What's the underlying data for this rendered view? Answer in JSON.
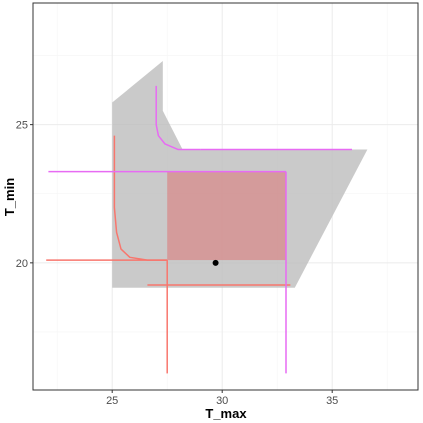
{
  "chart_data": {
    "type": "scatter",
    "title": "",
    "xlabel": "T_max",
    "ylabel": "T_min",
    "xlim": [
      21.4,
      38.9
    ],
    "ylim": [
      15.4,
      29.4
    ],
    "x_ticks": [
      25,
      30,
      35
    ],
    "y_ticks": [
      20,
      25
    ],
    "x_tick_labels": [
      "25",
      "30",
      "35"
    ],
    "y_tick_labels": [
      "20",
      "25"
    ],
    "grid": true,
    "colors": {
      "panel_border": "#333333",
      "grid_major": "#ebebeb",
      "grid_minor": "#f5f5f5",
      "region_fill": "#bdbdbd",
      "overlap_fill": "#d78b8b",
      "red": "#f8766d",
      "magenta": "#e76bf3",
      "point": "#000000"
    },
    "gray_region": [
      [
        25.0,
        25.8
      ],
      [
        27.3,
        27.3
      ],
      [
        27.3,
        25.5
      ],
      [
        28.2,
        24.1
      ],
      [
        36.6,
        24.1
      ],
      [
        33.3,
        19.1
      ],
      [
        25.0,
        19.1
      ]
    ],
    "overlap_rectangle": {
      "x": [
        27.5,
        32.9
      ],
      "y": [
        20.1,
        23.3
      ]
    },
    "red_curve": [
      [
        25.1,
        24.6
      ],
      [
        25.1,
        22.0
      ],
      [
        25.2,
        21.1
      ],
      [
        25.4,
        20.5
      ],
      [
        25.8,
        20.2
      ],
      [
        26.6,
        20.1
      ],
      [
        27.5,
        20.1
      ]
    ],
    "red_h_line": {
      "x": [
        22.0,
        27.5
      ],
      "y": 20.1
    },
    "red_bottom_line": {
      "x": [
        26.6,
        33.1
      ],
      "y": 19.2
    },
    "red_v_line": {
      "x": 27.5,
      "y": [
        16.0,
        20.1
      ]
    },
    "magenta_curve": [
      [
        27.0,
        26.4
      ],
      [
        27.0,
        25.0
      ],
      [
        27.1,
        24.6
      ],
      [
        27.4,
        24.3
      ],
      [
        28.0,
        24.1
      ],
      [
        29.0,
        24.1
      ]
    ],
    "magenta_top_line": {
      "x": [
        29.0,
        35.9
      ],
      "y": 24.1
    },
    "magenta_h_line": {
      "x": [
        22.1,
        32.9
      ],
      "y": 23.3
    },
    "magenta_v_line": {
      "x": 32.9,
      "y": [
        16.0,
        23.3
      ]
    },
    "point": {
      "x": 29.7,
      "y": 20.0
    }
  }
}
